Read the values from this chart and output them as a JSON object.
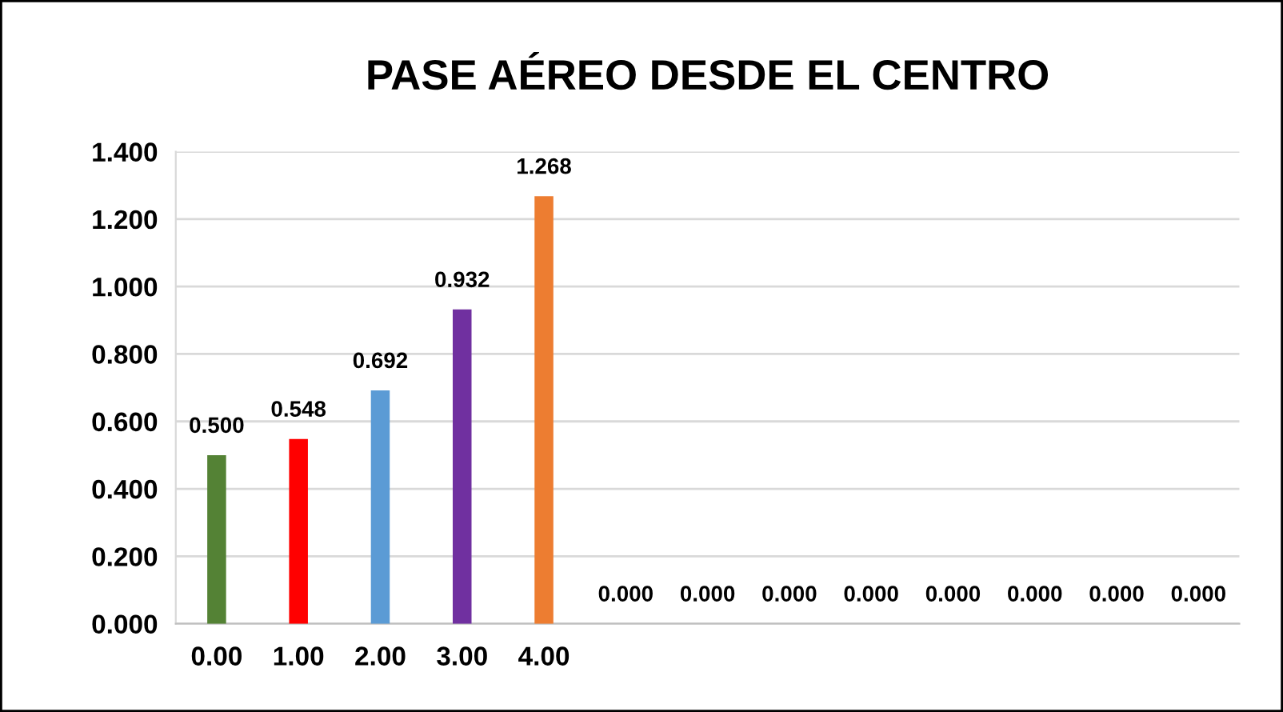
{
  "chart_data": {
    "type": "bar",
    "title": "PASE AÉREO DESDE EL CENTRO",
    "categories": [
      "0.00",
      "1.00",
      "2.00",
      "3.00",
      "4.00",
      null,
      null,
      null,
      null,
      null,
      null,
      null,
      null
    ],
    "values": [
      0.5,
      0.548,
      0.692,
      0.932,
      1.268,
      0,
      0,
      0,
      0,
      0,
      0,
      0,
      0
    ],
    "colors": [
      "#548235",
      "#ff0000",
      "#5b9bd5",
      "#7030a0",
      "#ed7d31",
      "#4472c4",
      "#4472c4",
      "#4472c4",
      "#4472c4",
      "#4472c4",
      "#4472c4",
      "#4472c4",
      "#4472c4"
    ],
    "value_labels": [
      "0.500",
      "0.548",
      "0.692",
      "0.932",
      "1.268",
      "0.000",
      "0.000",
      "0.000",
      "0.000",
      "0.000",
      "0.000",
      "0.000",
      "0.000"
    ],
    "ylim": [
      0,
      1.4
    ],
    "yticks": [
      {
        "value": 0,
        "label": "0.000"
      },
      {
        "value": 0.2,
        "label": "0.200"
      },
      {
        "value": 0.4,
        "label": "0.400"
      },
      {
        "value": 0.6,
        "label": "0.600"
      },
      {
        "value": 0.8,
        "label": "0.800"
      },
      {
        "value": 1.0,
        "label": "1.000"
      },
      {
        "value": 1.2,
        "label": "1.200"
      },
      {
        "value": 1.4,
        "label": "1.400"
      }
    ],
    "grid": "y",
    "legend": false
  }
}
